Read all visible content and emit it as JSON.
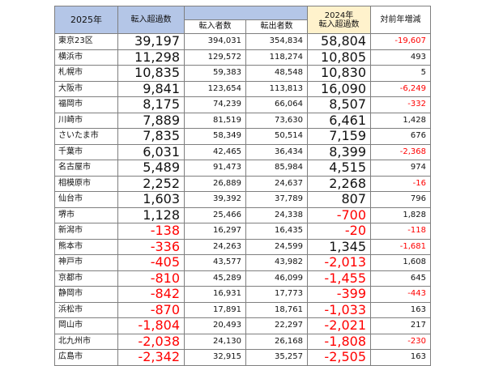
{
  "header": {
    "year2025": "2025年",
    "net_inflow": "転入超過数",
    "inflow": "転入者数",
    "outflow": "転出者数",
    "year2024_line1": "2024年",
    "year2024_line2": "転入超過数",
    "yoy": "対前年増減"
  },
  "colors": {
    "header_blue": "#b4c6e7",
    "header_yellow": "#fff2cc",
    "negative": "#ff0000"
  },
  "rows": [
    {
      "city": "東京23区",
      "net2025": "39,197",
      "in": "394,031",
      "out": "354,834",
      "net2024": "58,804",
      "diff": "-19,607"
    },
    {
      "city": "横浜市",
      "net2025": "11,298",
      "in": "129,572",
      "out": "118,274",
      "net2024": "10,805",
      "diff": "493"
    },
    {
      "city": "札幌市",
      "net2025": "10,835",
      "in": "59,383",
      "out": "48,548",
      "net2024": "10,830",
      "diff": "5"
    },
    {
      "city": "大阪市",
      "net2025": "9,841",
      "in": "123,654",
      "out": "113,813",
      "net2024": "16,090",
      "diff": "-6,249"
    },
    {
      "city": "福岡市",
      "net2025": "8,175",
      "in": "74,239",
      "out": "66,064",
      "net2024": "8,507",
      "diff": "-332"
    },
    {
      "city": "川崎市",
      "net2025": "7,889",
      "in": "81,519",
      "out": "73,630",
      "net2024": "6,461",
      "diff": "1,428"
    },
    {
      "city": "さいたま市",
      "net2025": "7,835",
      "in": "58,349",
      "out": "50,514",
      "net2024": "7,159",
      "diff": "676"
    },
    {
      "city": "千葉市",
      "net2025": "6,031",
      "in": "42,465",
      "out": "36,434",
      "net2024": "8,399",
      "diff": "-2,368"
    },
    {
      "city": "名古屋市",
      "net2025": "5,489",
      "in": "91,473",
      "out": "85,984",
      "net2024": "4,515",
      "diff": "974"
    },
    {
      "city": "相模原市",
      "net2025": "2,252",
      "in": "26,889",
      "out": "24,637",
      "net2024": "2,268",
      "diff": "-16"
    },
    {
      "city": "仙台市",
      "net2025": "1,603",
      "in": "39,392",
      "out": "37,789",
      "net2024": "807",
      "diff": "796"
    },
    {
      "city": "堺市",
      "net2025": "1,128",
      "in": "25,466",
      "out": "24,338",
      "net2024": "-700",
      "diff": "1,828"
    },
    {
      "city": "新潟市",
      "net2025": "-138",
      "in": "16,297",
      "out": "16,435",
      "net2024": "-20",
      "diff": "-118"
    },
    {
      "city": "熊本市",
      "net2025": "-336",
      "in": "24,263",
      "out": "24,599",
      "net2024": "1,345",
      "diff": "-1,681"
    },
    {
      "city": "神戸市",
      "net2025": "-405",
      "in": "43,577",
      "out": "43,982",
      "net2024": "-2,013",
      "diff": "1,608"
    },
    {
      "city": "京都市",
      "net2025": "-810",
      "in": "45,289",
      "out": "46,099",
      "net2024": "-1,455",
      "diff": "645"
    },
    {
      "city": "静岡市",
      "net2025": "-842",
      "in": "16,931",
      "out": "17,773",
      "net2024": "-399",
      "diff": "-443"
    },
    {
      "city": "浜松市",
      "net2025": "-870",
      "in": "17,891",
      "out": "18,761",
      "net2024": "-1,033",
      "diff": "163"
    },
    {
      "city": "岡山市",
      "net2025": "-1,804",
      "in": "20,493",
      "out": "22,297",
      "net2024": "-2,021",
      "diff": "217"
    },
    {
      "city": "北九州市",
      "net2025": "-2,038",
      "in": "24,130",
      "out": "26,168",
      "net2024": "-1,808",
      "diff": "-230"
    },
    {
      "city": "広島市",
      "net2025": "-2,342",
      "in": "32,915",
      "out": "35,257",
      "net2024": "-2,505",
      "diff": "163"
    }
  ]
}
